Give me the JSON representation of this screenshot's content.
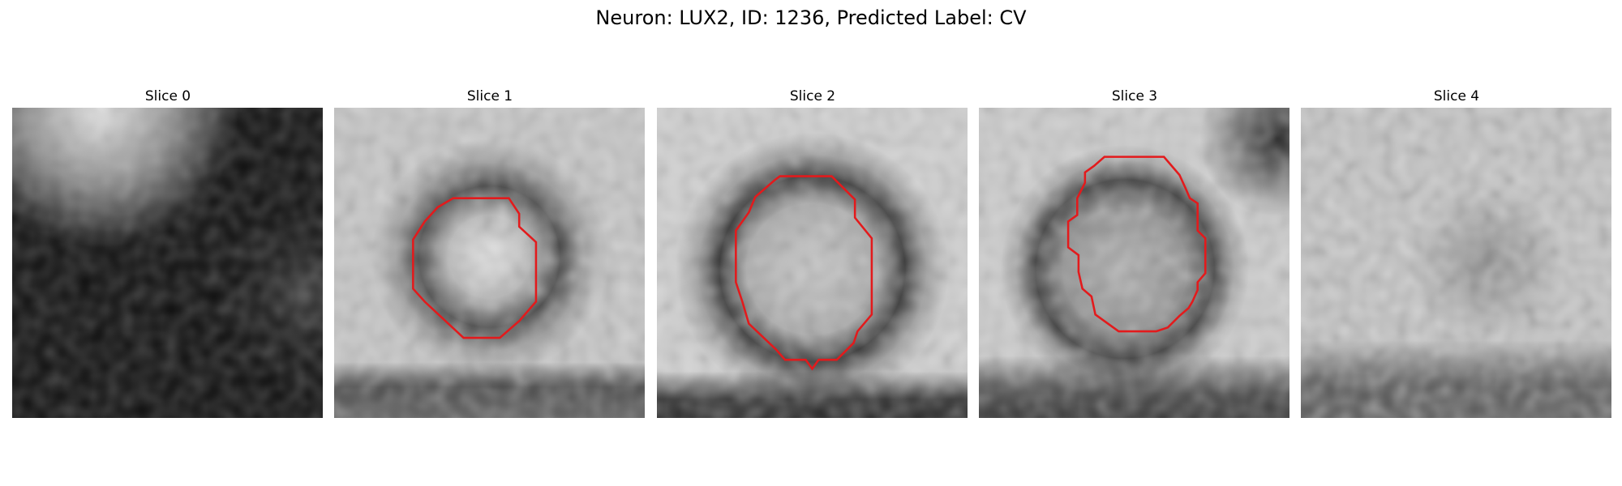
{
  "figure": {
    "title": "Neuron: LUX2, ID: 1236, Predicted Label: CV"
  },
  "slices": [
    {
      "label": "Slice 0",
      "has_contour": false,
      "tone": "dark"
    },
    {
      "label": "Slice 1",
      "has_contour": true,
      "tone": "grey"
    },
    {
      "label": "Slice 2",
      "has_contour": true,
      "tone": "grey"
    },
    {
      "label": "Slice 3",
      "has_contour": true,
      "tone": "grey"
    },
    {
      "label": "Slice 4",
      "has_contour": false,
      "tone": "light"
    }
  ],
  "colors": {
    "contour": "#e31a1c",
    "background": "#ffffff"
  }
}
